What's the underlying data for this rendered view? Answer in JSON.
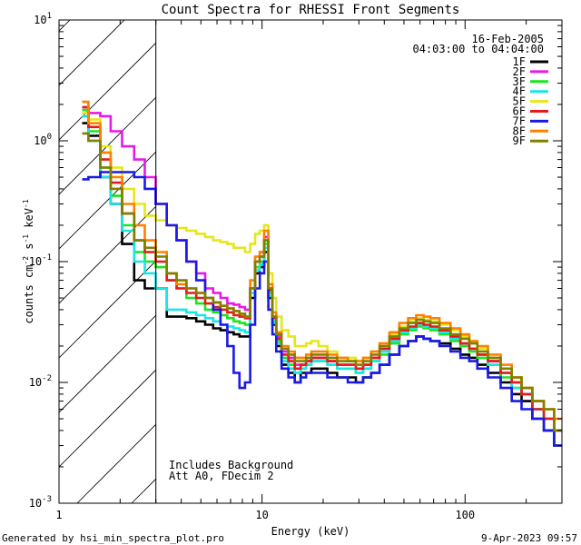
{
  "chart_data": {
    "type": "line",
    "title": "Count Spectra for RHESSI Front Segments",
    "xlabel": "Energy (keV)",
    "ylabel": "counts cm^-2 s^-1 keV^-1",
    "ylabel_parts": {
      "base": "counts cm",
      "e1": "-2",
      "s": " s",
      "e2": "-1",
      "kev": " keV",
      "e3": "-1"
    },
    "x_scale": "log",
    "y_scale": "log",
    "xlim": [
      1,
      300
    ],
    "ylim": [
      0.001,
      10
    ],
    "x_ticks": [
      {
        "value": 1,
        "label": "1"
      },
      {
        "value": 10,
        "label": "10"
      },
      {
        "value": 100,
        "label": "100"
      }
    ],
    "y_ticks": [
      {
        "value": 0.001,
        "base": "10",
        "exp": "-3"
      },
      {
        "value": 0.01,
        "base": "10",
        "exp": "-2"
      },
      {
        "value": 0.1,
        "base": "10",
        "exp": "-1"
      },
      {
        "value": 1,
        "base": "10",
        "exp": "0"
      },
      {
        "value": 10,
        "base": "10",
        "exp": "1"
      }
    ],
    "date": "16-Feb-2005",
    "time_range": "04:03:00 to 04:04:00",
    "annotation_lines": [
      "Includes Background",
      "Att A0, FDecim 2"
    ],
    "hatched_region_max_energy": 3,
    "x": [
      1.3,
      1.5,
      1.7,
      1.9,
      2.2,
      2.5,
      2.8,
      3.2,
      3.6,
      4.0,
      4.5,
      5.0,
      5.5,
      6.0,
      6.5,
      7.0,
      7.5,
      8.0,
      8.5,
      9.0,
      9.5,
      10.0,
      10.5,
      11.0,
      11.5,
      12.0,
      13.0,
      14.0,
      15.0,
      16.0,
      17.0,
      18.0,
      20.0,
      22.0,
      25.0,
      28.0,
      30.0,
      33.0,
      36.0,
      40.0,
      45.0,
      50.0,
      55.0,
      60.0,
      65.0,
      70.0,
      80.0,
      90.0,
      100.0,
      110.0,
      120.0,
      140.0,
      160.0,
      180.0,
      200.0,
      230.0,
      260.0,
      290.0
    ],
    "series": [
      {
        "name": "1F",
        "color": "#000000",
        "values": [
          1.4,
          1.1,
          0.5,
          0.3,
          0.14,
          0.07,
          0.06,
          0.06,
          0.035,
          0.035,
          0.034,
          0.032,
          0.03,
          0.028,
          0.027,
          0.026,
          0.025,
          0.024,
          0.024,
          0.05,
          0.08,
          0.09,
          0.12,
          0.05,
          0.03,
          0.02,
          0.014,
          0.012,
          0.01,
          0.012,
          0.012,
          0.013,
          0.013,
          0.012,
          0.011,
          0.011,
          0.01,
          0.011,
          0.012,
          0.014,
          0.017,
          0.02,
          0.022,
          0.024,
          0.023,
          0.022,
          0.021,
          0.019,
          0.017,
          0.016,
          0.014,
          0.012,
          0.01,
          0.008,
          0.007,
          0.005,
          0.004,
          0.003
        ]
      },
      {
        "name": "2F",
        "color": "#e61ae6",
        "values": [
          1.8,
          1.7,
          1.6,
          1.2,
          0.9,
          0.7,
          0.5,
          0.3,
          0.2,
          0.15,
          0.1,
          0.08,
          0.06,
          0.055,
          0.05,
          0.045,
          0.044,
          0.042,
          0.04,
          0.06,
          0.1,
          0.12,
          0.16,
          0.06,
          0.035,
          0.024,
          0.018,
          0.016,
          0.014,
          0.014,
          0.015,
          0.016,
          0.016,
          0.015,
          0.014,
          0.014,
          0.013,
          0.014,
          0.016,
          0.018,
          0.022,
          0.026,
          0.028,
          0.03,
          0.029,
          0.028,
          0.026,
          0.023,
          0.021,
          0.019,
          0.017,
          0.015,
          0.012,
          0.01,
          0.008,
          0.006,
          0.005,
          0.004
        ]
      },
      {
        "name": "3F",
        "color": "#1ae61a",
        "values": [
          1.8,
          1.2,
          0.6,
          0.35,
          0.2,
          0.12,
          0.1,
          0.09,
          0.07,
          0.06,
          0.05,
          0.045,
          0.04,
          0.038,
          0.036,
          0.034,
          0.032,
          0.031,
          0.03,
          0.06,
          0.09,
          0.1,
          0.14,
          0.055,
          0.032,
          0.022,
          0.016,
          0.014,
          0.012,
          0.013,
          0.014,
          0.015,
          0.015,
          0.014,
          0.013,
          0.013,
          0.012,
          0.013,
          0.015,
          0.017,
          0.021,
          0.025,
          0.027,
          0.029,
          0.028,
          0.027,
          0.025,
          0.022,
          0.02,
          0.018,
          0.016,
          0.014,
          0.011,
          0.009,
          0.008,
          0.006,
          0.005,
          0.004
        ]
      },
      {
        "name": "4F",
        "color": "#1ae6e6",
        "values": [
          1.6,
          1.0,
          0.5,
          0.3,
          0.18,
          0.1,
          0.08,
          0.06,
          0.04,
          0.04,
          0.038,
          0.036,
          0.034,
          0.032,
          0.03,
          0.029,
          0.028,
          0.027,
          0.026,
          0.055,
          0.085,
          0.095,
          0.13,
          0.052,
          0.031,
          0.021,
          0.015,
          0.013,
          0.012,
          0.013,
          0.014,
          0.015,
          0.015,
          0.014,
          0.013,
          0.013,
          0.012,
          0.013,
          0.015,
          0.018,
          0.022,
          0.026,
          0.028,
          0.03,
          0.029,
          0.028,
          0.026,
          0.023,
          0.021,
          0.019,
          0.017,
          0.014,
          0.012,
          0.009,
          0.008,
          0.006,
          0.005,
          0.004
        ]
      },
      {
        "name": "5F",
        "color": "#e6e61a",
        "values": [
          1.7,
          1.5,
          0.9,
          0.6,
          0.4,
          0.3,
          0.24,
          0.22,
          0.2,
          0.19,
          0.18,
          0.17,
          0.16,
          0.15,
          0.145,
          0.14,
          0.13,
          0.13,
          0.12,
          0.14,
          0.17,
          0.18,
          0.2,
          0.08,
          0.05,
          0.035,
          0.027,
          0.024,
          0.02,
          0.02,
          0.021,
          0.022,
          0.02,
          0.018,
          0.016,
          0.016,
          0.015,
          0.016,
          0.018,
          0.021,
          0.025,
          0.029,
          0.032,
          0.034,
          0.033,
          0.032,
          0.03,
          0.027,
          0.024,
          0.022,
          0.019,
          0.016,
          0.013,
          0.011,
          0.009,
          0.007,
          0.006,
          0.004
        ]
      },
      {
        "name": "6F",
        "color": "#e61a1a",
        "values": [
          1.9,
          1.3,
          0.7,
          0.45,
          0.25,
          0.15,
          0.12,
          0.1,
          0.07,
          0.06,
          0.055,
          0.05,
          0.045,
          0.042,
          0.04,
          0.038,
          0.036,
          0.035,
          0.034,
          0.06,
          0.1,
          0.11,
          0.15,
          0.058,
          0.034,
          0.023,
          0.017,
          0.015,
          0.013,
          0.014,
          0.015,
          0.016,
          0.016,
          0.015,
          0.014,
          0.014,
          0.013,
          0.014,
          0.016,
          0.019,
          0.023,
          0.027,
          0.029,
          0.031,
          0.03,
          0.029,
          0.027,
          0.024,
          0.021,
          0.019,
          0.017,
          0.015,
          0.012,
          0.01,
          0.008,
          0.006,
          0.005,
          0.004
        ]
      },
      {
        "name": "7F",
        "color": "#1a1ae6",
        "values": [
          0.48,
          0.5,
          0.55,
          0.55,
          0.55,
          0.5,
          0.4,
          0.3,
          0.2,
          0.15,
          0.1,
          0.07,
          0.05,
          0.04,
          0.03,
          0.02,
          0.012,
          0.009,
          0.01,
          0.03,
          0.06,
          0.08,
          0.1,
          0.04,
          0.025,
          0.018,
          0.013,
          0.011,
          0.01,
          0.011,
          0.012,
          0.012,
          0.012,
          0.011,
          0.011,
          0.01,
          0.01,
          0.011,
          0.012,
          0.014,
          0.017,
          0.02,
          0.022,
          0.024,
          0.023,
          0.022,
          0.02,
          0.018,
          0.016,
          0.015,
          0.013,
          0.011,
          0.009,
          0.007,
          0.006,
          0.005,
          0.004,
          0.003
        ]
      },
      {
        "name": "8F",
        "color": "#ff8000",
        "values": [
          2.1,
          1.4,
          0.8,
          0.5,
          0.3,
          0.2,
          0.15,
          0.12,
          0.08,
          0.065,
          0.06,
          0.055,
          0.05,
          0.046,
          0.043,
          0.041,
          0.039,
          0.037,
          0.035,
          0.07,
          0.11,
          0.12,
          0.18,
          0.065,
          0.038,
          0.026,
          0.02,
          0.018,
          0.016,
          0.016,
          0.017,
          0.018,
          0.018,
          0.017,
          0.016,
          0.015,
          0.015,
          0.016,
          0.018,
          0.021,
          0.026,
          0.031,
          0.034,
          0.036,
          0.035,
          0.034,
          0.031,
          0.028,
          0.025,
          0.022,
          0.02,
          0.017,
          0.014,
          0.011,
          0.009,
          0.007,
          0.006,
          0.005
        ]
      },
      {
        "name": "9F",
        "color": "#808000",
        "values": [
          1.15,
          1.0,
          0.6,
          0.4,
          0.25,
          0.15,
          0.13,
          0.11,
          0.08,
          0.07,
          0.06,
          0.055,
          0.05,
          0.046,
          0.043,
          0.041,
          0.039,
          0.037,
          0.035,
          0.06,
          0.1,
          0.11,
          0.15,
          0.06,
          0.035,
          0.025,
          0.019,
          0.017,
          0.015,
          0.015,
          0.016,
          0.017,
          0.017,
          0.016,
          0.015,
          0.015,
          0.014,
          0.015,
          0.017,
          0.02,
          0.024,
          0.028,
          0.031,
          0.033,
          0.032,
          0.031,
          0.028,
          0.025,
          0.023,
          0.021,
          0.018,
          0.016,
          0.013,
          0.011,
          0.009,
          0.007,
          0.006,
          0.004
        ]
      }
    ]
  },
  "footer": {
    "generated_by": "Generated by hsi_min_spectra_plot.pro",
    "generated_on": "9-Apr-2023 09:57"
  }
}
